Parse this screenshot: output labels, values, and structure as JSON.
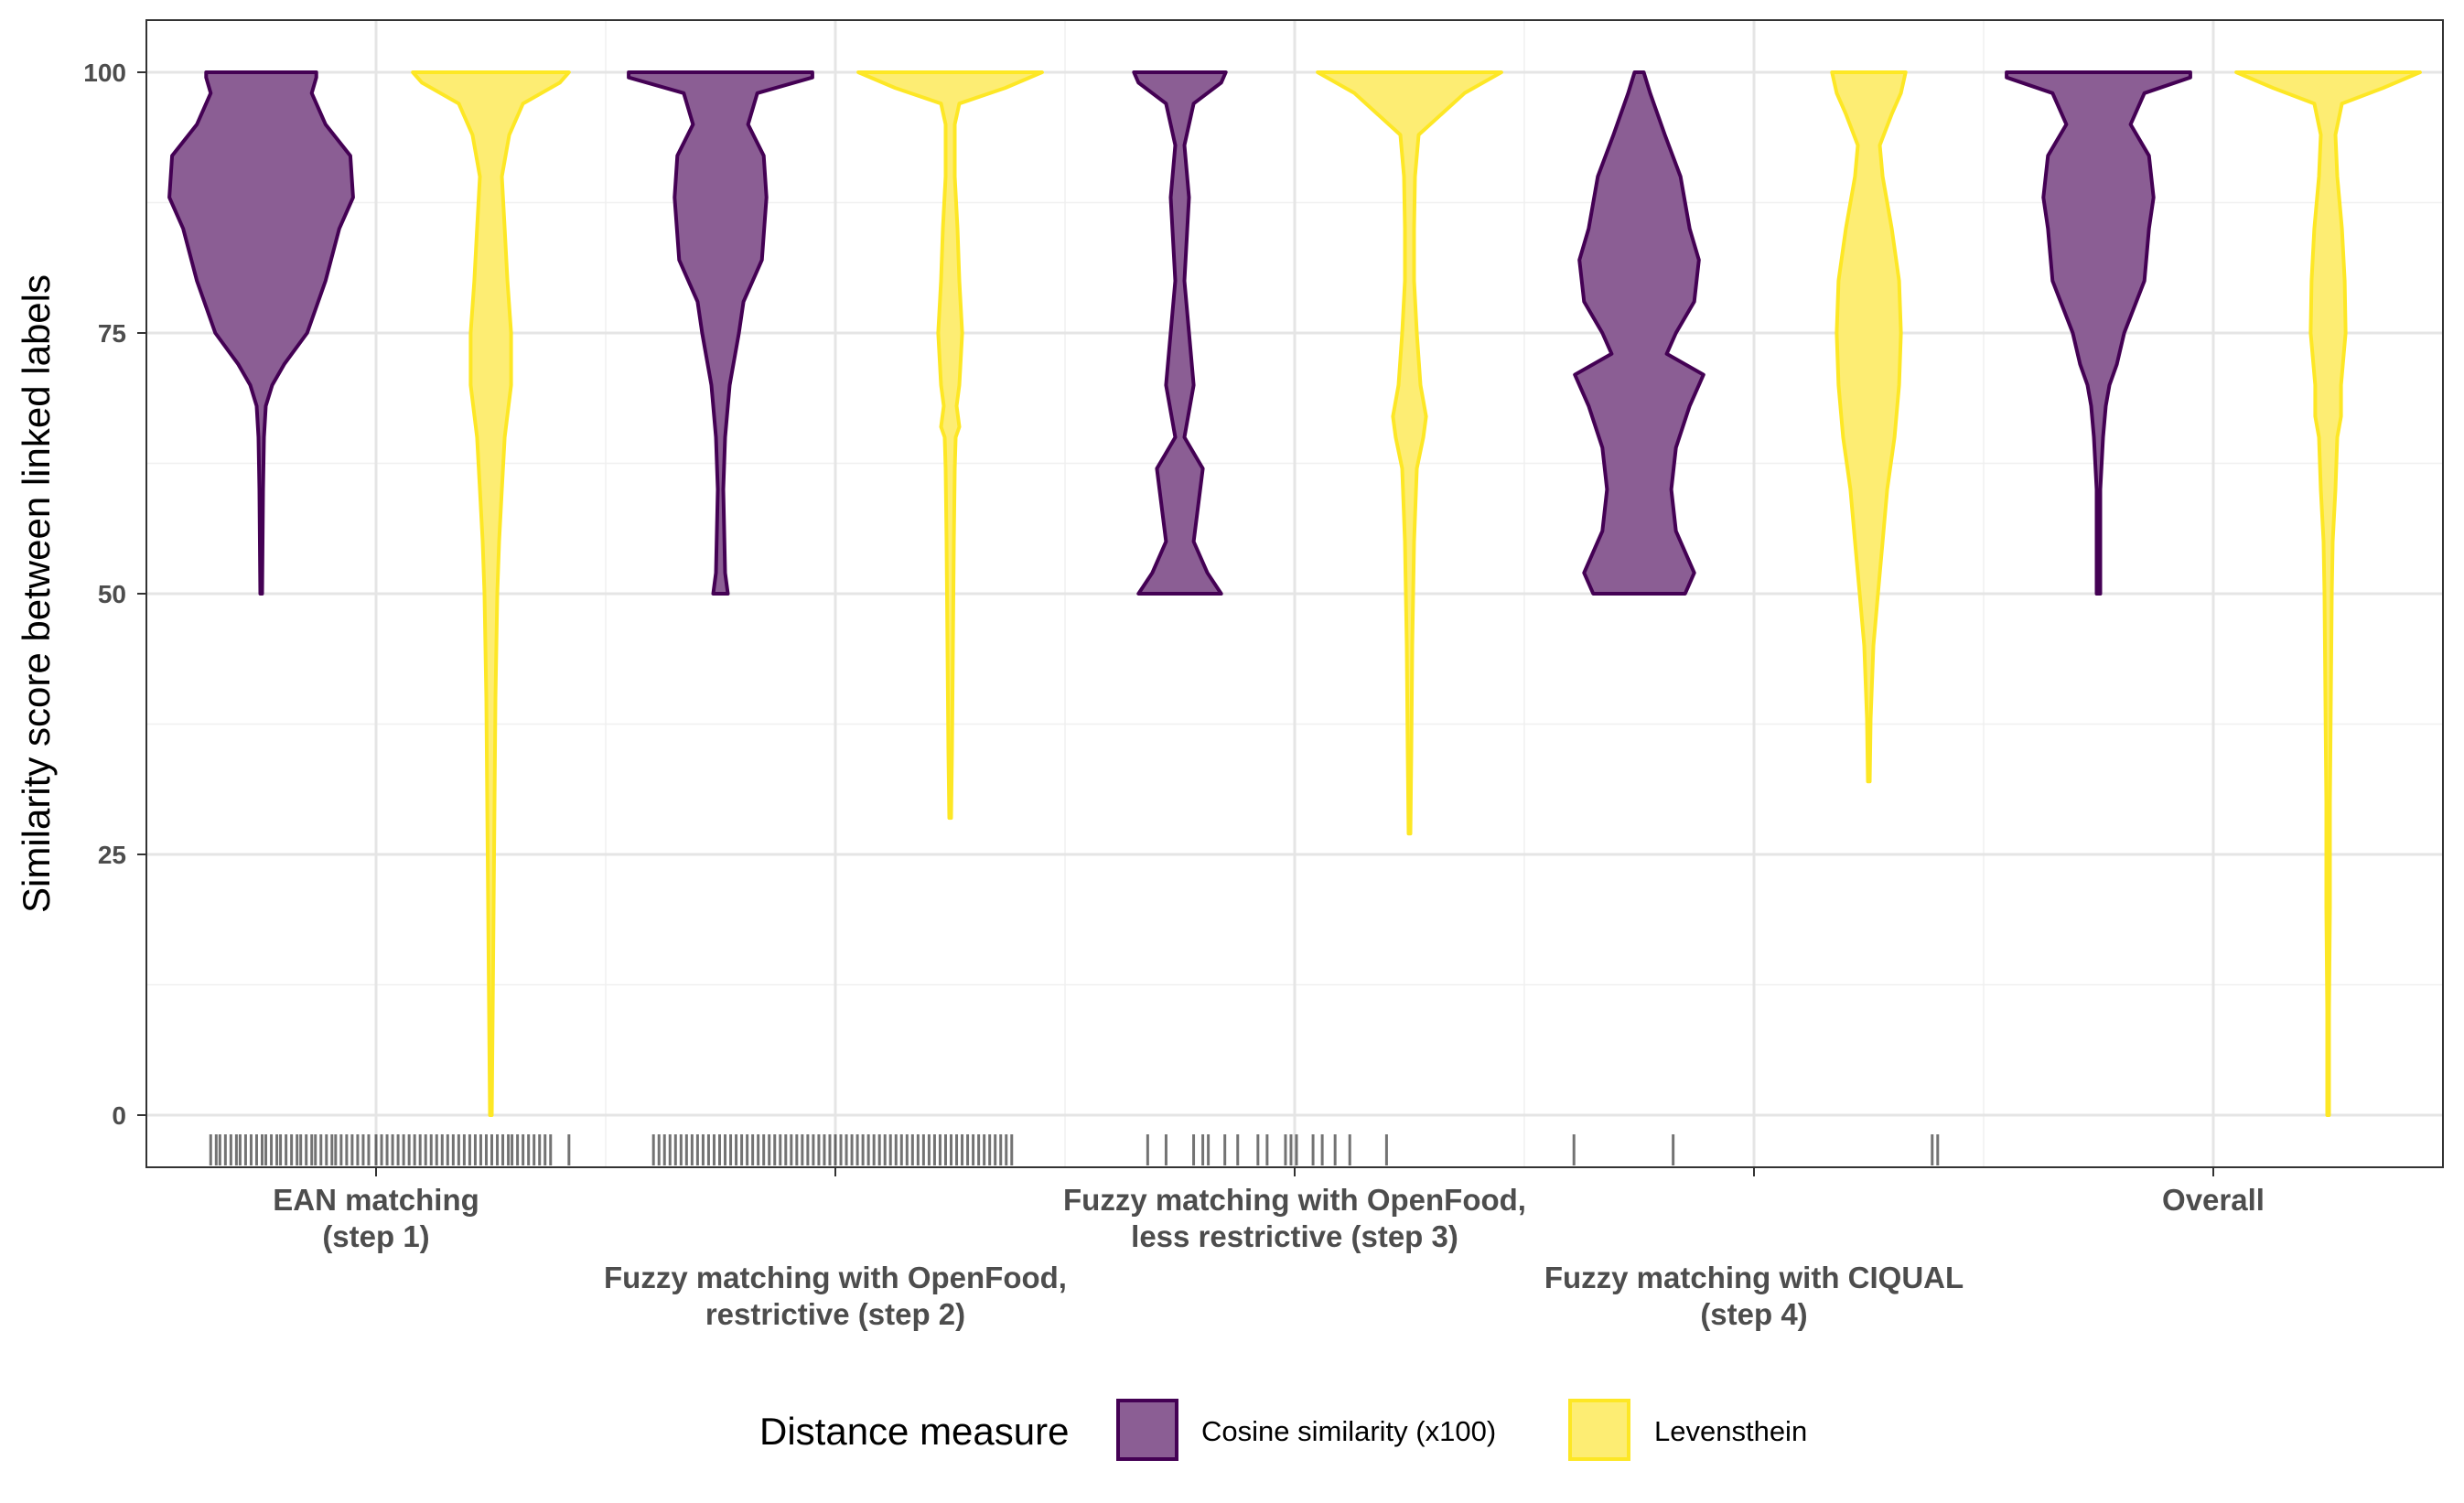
{
  "chart_data": {
    "type": "violin",
    "ylabel": "Similarity score between linked labels",
    "ylim": [
      -5,
      105
    ],
    "yticks": [
      0,
      25,
      50,
      75,
      100
    ],
    "grid": true,
    "categories": [
      "EAN matching\n(step 1)",
      "Fuzzy matching with OpenFood,\nrestrictive (step 2)",
      "Fuzzy matching with OpenFood,\nless restrictive (step 3)",
      "Fuzzy matching with CIQUAL\n(step 4)",
      "Overall"
    ],
    "legend": {
      "title": "Distance measure",
      "position": "bottom",
      "entries": [
        "Cosine similarity (x100)",
        "Levensthein"
      ]
    },
    "series": [
      {
        "name": "Cosine similarity (x100)",
        "color": "#440154",
        "fill": "#8B5E94",
        "violins": [
          {
            "category_index": 0,
            "min": 50,
            "max": 100,
            "density": [
              [
                50,
                0.01
              ],
              [
                60,
                0.02
              ],
              [
                65,
                0.03
              ],
              [
                68,
                0.05
              ],
              [
                70,
                0.12
              ],
              [
                72,
                0.25
              ],
              [
                75,
                0.5
              ],
              [
                80,
                0.7
              ],
              [
                85,
                0.85
              ],
              [
                88,
                1.0
              ],
              [
                92,
                0.97
              ],
              [
                95,
                0.7
              ],
              [
                98,
                0.55
              ],
              [
                99.5,
                0.6
              ],
              [
                100,
                0.6
              ]
            ]
          },
          {
            "category_index": 1,
            "min": 50,
            "max": 100,
            "density": [
              [
                50,
                0.08
              ],
              [
                52,
                0.05
              ],
              [
                60,
                0.03
              ],
              [
                65,
                0.05
              ],
              [
                70,
                0.1
              ],
              [
                75,
                0.2
              ],
              [
                78,
                0.25
              ],
              [
                82,
                0.45
              ],
              [
                88,
                0.5
              ],
              [
                92,
                0.47
              ],
              [
                95,
                0.3
              ],
              [
                98,
                0.4
              ],
              [
                99.5,
                1.0
              ],
              [
                100,
                1.0
              ]
            ]
          },
          {
            "category_index": 2,
            "min": 50,
            "max": 100,
            "density": [
              [
                50,
                0.45
              ],
              [
                52,
                0.3
              ],
              [
                55,
                0.15
              ],
              [
                62,
                0.25
              ],
              [
                65,
                0.05
              ],
              [
                70,
                0.15
              ],
              [
                80,
                0.05
              ],
              [
                88,
                0.1
              ],
              [
                93,
                0.05
              ],
              [
                97,
                0.15
              ],
              [
                99,
                0.45
              ],
              [
                100,
                0.5
              ]
            ]
          },
          {
            "category_index": 3,
            "min": 50,
            "max": 100,
            "density": [
              [
                50,
                0.5
              ],
              [
                52,
                0.6
              ],
              [
                56,
                0.4
              ],
              [
                60,
                0.35
              ],
              [
                64,
                0.4
              ],
              [
                68,
                0.55
              ],
              [
                71,
                0.7
              ],
              [
                73,
                0.3
              ],
              [
                75,
                0.4
              ],
              [
                78,
                0.6
              ],
              [
                82,
                0.65
              ],
              [
                85,
                0.55
              ],
              [
                90,
                0.45
              ],
              [
                94,
                0.28
              ],
              [
                98,
                0.12
              ],
              [
                100,
                0.05
              ]
            ]
          },
          {
            "category_index": 4,
            "min": 50,
            "max": 100,
            "density": [
              [
                50,
                0.02
              ],
              [
                60,
                0.02
              ],
              [
                65,
                0.05
              ],
              [
                68,
                0.08
              ],
              [
                70,
                0.12
              ],
              [
                72,
                0.2
              ],
              [
                75,
                0.28
              ],
              [
                80,
                0.5
              ],
              [
                85,
                0.55
              ],
              [
                88,
                0.6
              ],
              [
                92,
                0.55
              ],
              [
                95,
                0.35
              ],
              [
                98,
                0.5
              ],
              [
                99.5,
                1.0
              ],
              [
                100,
                1.0
              ]
            ]
          }
        ]
      },
      {
        "name": "Levensthein",
        "color": "#FDE725",
        "fill": "#FDED73",
        "violins": [
          {
            "category_index": 0,
            "min": 0,
            "max": 100,
            "density": [
              [
                0,
                0.01
              ],
              [
                10,
                0.02
              ],
              [
                20,
                0.03
              ],
              [
                30,
                0.04
              ],
              [
                40,
                0.05
              ],
              [
                50,
                0.07
              ],
              [
                55,
                0.09
              ],
              [
                60,
                0.12
              ],
              [
                65,
                0.15
              ],
              [
                70,
                0.22
              ],
              [
                75,
                0.22
              ],
              [
                80,
                0.18
              ],
              [
                85,
                0.15
              ],
              [
                90,
                0.12
              ],
              [
                94,
                0.2
              ],
              [
                97,
                0.35
              ],
              [
                99,
                0.75
              ],
              [
                100,
                0.85
              ]
            ]
          },
          {
            "category_index": 1,
            "min": 28.5,
            "max": 100,
            "density": [
              [
                28.5,
                0.01
              ],
              [
                35,
                0.02
              ],
              [
                45,
                0.03
              ],
              [
                55,
                0.04
              ],
              [
                62,
                0.05
              ],
              [
                65,
                0.06
              ],
              [
                66,
                0.1
              ],
              [
                68,
                0.07
              ],
              [
                70,
                0.1
              ],
              [
                75,
                0.13
              ],
              [
                80,
                0.1
              ],
              [
                85,
                0.08
              ],
              [
                90,
                0.05
              ],
              [
                95,
                0.05
              ],
              [
                97,
                0.1
              ],
              [
                98.5,
                0.6
              ],
              [
                100,
                1.0
              ]
            ]
          },
          {
            "category_index": 2,
            "min": 27,
            "max": 100,
            "density": [
              [
                27,
                0.01
              ],
              [
                35,
                0.02
              ],
              [
                45,
                0.03
              ],
              [
                55,
                0.05
              ],
              [
                62,
                0.08
              ],
              [
                65,
                0.15
              ],
              [
                67,
                0.18
              ],
              [
                70,
                0.12
              ],
              [
                75,
                0.08
              ],
              [
                80,
                0.05
              ],
              [
                85,
                0.05
              ],
              [
                90,
                0.06
              ],
              [
                94,
                0.1
              ],
              [
                96,
                0.35
              ],
              [
                98,
                0.6
              ],
              [
                100,
                1.0
              ]
            ]
          },
          {
            "category_index": 3,
            "min": 32,
            "max": 100,
            "density": [
              [
                32,
                0.01
              ],
              [
                38,
                0.02
              ],
              [
                45,
                0.05
              ],
              [
                50,
                0.1
              ],
              [
                55,
                0.15
              ],
              [
                60,
                0.2
              ],
              [
                65,
                0.28
              ],
              [
                70,
                0.33
              ],
              [
                75,
                0.35
              ],
              [
                80,
                0.33
              ],
              [
                85,
                0.25
              ],
              [
                90,
                0.15
              ],
              [
                93,
                0.12
              ],
              [
                96,
                0.25
              ],
              [
                98,
                0.35
              ],
              [
                100,
                0.4
              ]
            ]
          },
          {
            "category_index": 4,
            "min": 0,
            "max": 100,
            "density": [
              [
                0,
                0.01
              ],
              [
                10,
                0.01
              ],
              [
                20,
                0.02
              ],
              [
                30,
                0.02
              ],
              [
                40,
                0.03
              ],
              [
                50,
                0.04
              ],
              [
                55,
                0.05
              ],
              [
                60,
                0.08
              ],
              [
                65,
                0.1
              ],
              [
                67,
                0.14
              ],
              [
                70,
                0.14
              ],
              [
                75,
                0.19
              ],
              [
                80,
                0.18
              ],
              [
                85,
                0.15
              ],
              [
                90,
                0.1
              ],
              [
                94,
                0.08
              ],
              [
                97,
                0.15
              ],
              [
                98.5,
                0.6
              ],
              [
                100,
                1.0
              ]
            ]
          }
        ]
      }
    ],
    "rug": [
      {
        "category_index": 0,
        "positions": [
          -0.9,
          -0.87,
          -0.85,
          -0.82,
          -0.79,
          -0.76,
          -0.74,
          -0.71,
          -0.68,
          -0.65,
          -0.62,
          -0.6,
          -0.57,
          -0.54,
          -0.52,
          -0.49,
          -0.46,
          -0.43,
          -0.41,
          -0.38,
          -0.35,
          -0.33,
          -0.3,
          -0.27,
          -0.24,
          -0.22,
          -0.19,
          -0.16,
          -0.13,
          -0.1,
          -0.07,
          -0.04,
          0.0,
          0.03,
          0.06,
          0.09,
          0.12,
          0.15,
          0.18,
          0.21,
          0.24,
          0.27,
          0.3,
          0.33,
          0.36,
          0.39,
          0.42,
          0.45,
          0.48,
          0.51,
          0.54,
          0.57,
          0.6,
          0.63,
          0.66,
          0.69,
          0.72,
          0.74,
          0.77,
          0.8,
          0.83,
          0.86,
          0.89,
          0.92,
          0.95,
          1.05
        ]
      },
      {
        "category_index": 1,
        "positions": [
          -0.99,
          -0.96,
          -0.93,
          -0.9,
          -0.87,
          -0.84,
          -0.81,
          -0.78,
          -0.75,
          -0.72,
          -0.69,
          -0.66,
          -0.63,
          -0.6,
          -0.57,
          -0.54,
          -0.51,
          -0.48,
          -0.45,
          -0.42,
          -0.39,
          -0.36,
          -0.33,
          -0.3,
          -0.27,
          -0.24,
          -0.21,
          -0.18,
          -0.15,
          -0.12,
          -0.09,
          -0.06,
          -0.03,
          0.0,
          0.03,
          0.06,
          0.09,
          0.12,
          0.15,
          0.18,
          0.21,
          0.24,
          0.27,
          0.3,
          0.33,
          0.36,
          0.39,
          0.42,
          0.45,
          0.48,
          0.51,
          0.54,
          0.57,
          0.6,
          0.63,
          0.66,
          0.69,
          0.72,
          0.75,
          0.78,
          0.81,
          0.84,
          0.87,
          0.9,
          0.93,
          0.96
        ]
      },
      {
        "category_index": 2,
        "positions": [
          -0.8,
          -0.7,
          -0.55,
          -0.5,
          -0.47,
          -0.38,
          -0.31,
          -0.2,
          -0.15,
          -0.05,
          -0.02,
          0.01,
          0.1,
          0.15,
          0.22,
          0.3,
          0.5
        ]
      },
      {
        "category_index": 3,
        "positions": [
          -0.98,
          -0.44,
          0.97,
          1.0
        ]
      }
    ]
  }
}
